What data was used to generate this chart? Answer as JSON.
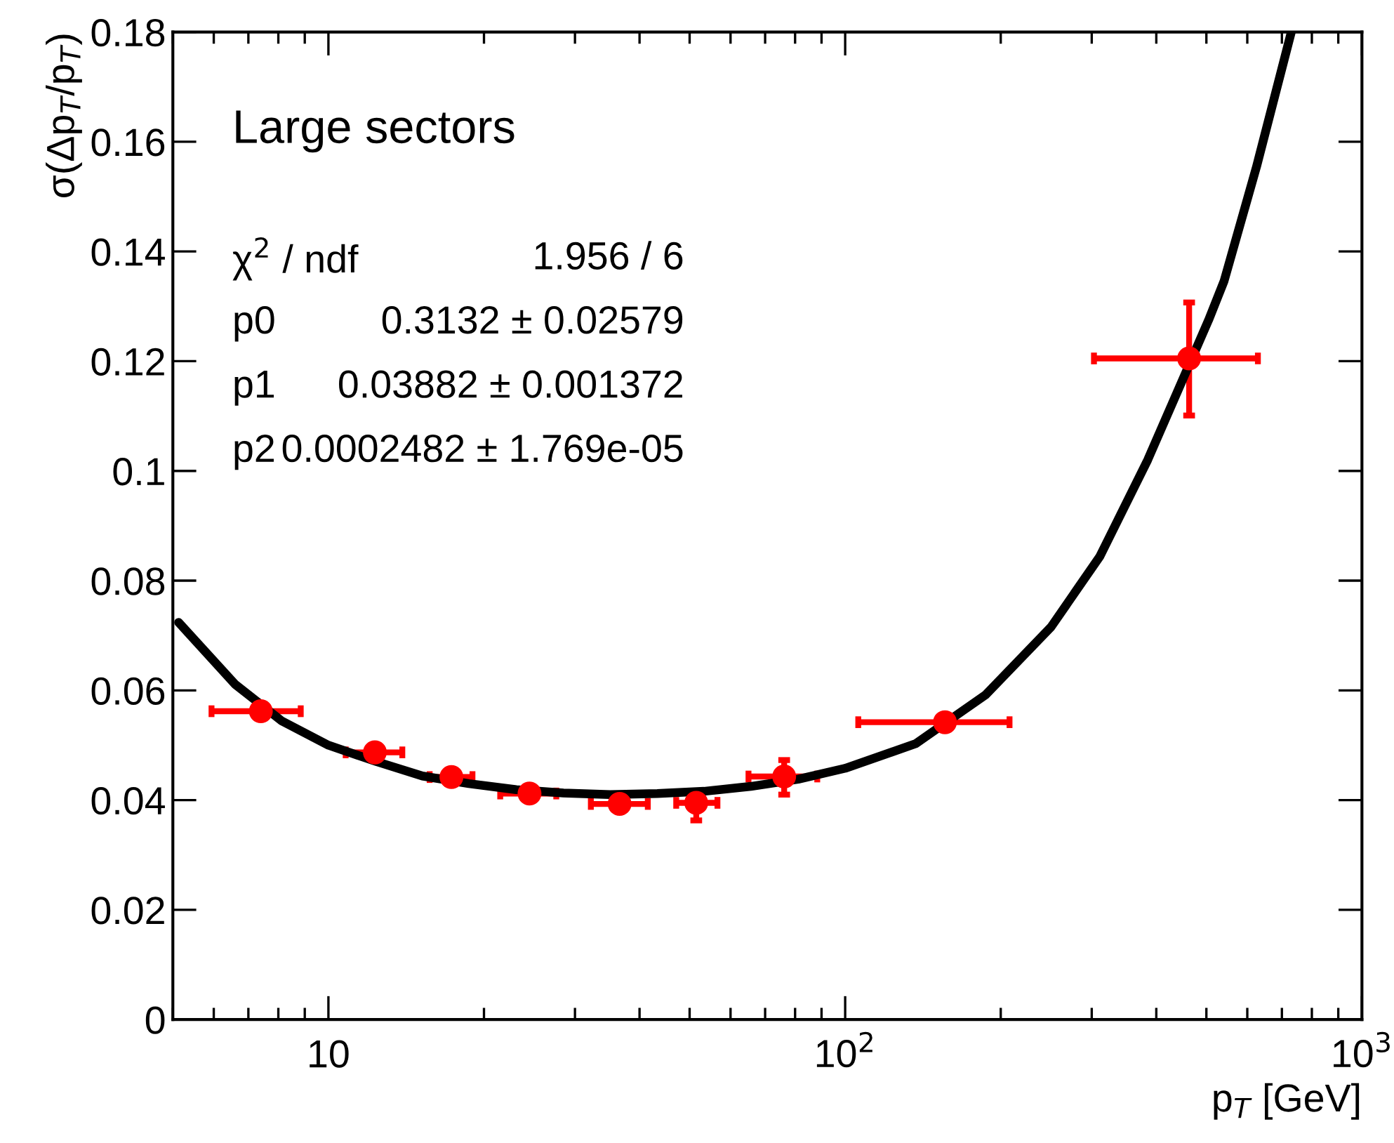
{
  "chart_data": {
    "type": "scatter",
    "xlabel": "p$_{T}$ [GeV]",
    "ylabel": "σ(Δp$_{T}$/p$_{T}$)",
    "log": "x",
    "xlim": [
      5,
      1000
    ],
    "xticks": [
      10,
      {
        "value": 100,
        "label": "10$^{2}$"
      },
      {
        "value": 1000,
        "label": "10$^{3}$"
      }
    ],
    "ylim": [
      0,
      0.18
    ],
    "yticks": [
      0,
      0.02,
      0.04,
      0.06,
      0.08,
      0.1,
      0.12,
      0.14,
      0.16,
      0.18
    ],
    "grid": false,
    "legend": false,
    "annotations": [
      "Large sectors",
      "χ$^{2}$ / ndf",
      "1.956 / 6",
      "p0",
      "0.3132 ± 0.02579",
      "p1",
      "0.03882 ± 0.001372",
      "p2",
      "0.0002482 ± 1.769e-05"
    ],
    "series": [
      {
        "type": "scatter",
        "color": "#ff0000",
        "marker": "circle",
        "x": [
          7.4,
          12.3,
          17.3,
          24.5,
          36.6,
          51.5,
          76.2,
          156,
          463
        ],
        "values": [
          0.0562,
          0.0487,
          0.0442,
          0.0412,
          0.0393,
          0.0395,
          0.0443,
          0.0542,
          0.1205
        ],
        "errors": [
          null,
          null,
          null,
          null,
          null,
          [
            0.0363,
            0.0395
          ],
          [
            0.041,
            0.0473
          ],
          null,
          [
            0.1101,
            0.1307
          ]
        ],
        "xerrors": [
          [
            5.94,
            8.84
          ],
          [
            10.8,
            13.9
          ],
          [
            15.7,
            19.0
          ],
          [
            21.5,
            27.6
          ],
          [
            32.2,
            41.5
          ],
          [
            47.1,
            56.6
          ],
          [
            65.0,
            88.3
          ],
          [
            106,
            208
          ],
          [
            303,
            629
          ]
        ]
      },
      {
        "type": "line",
        "color": "#000000",
        "line_style": "solid",
        "marker": "none",
        "x": [
          5.13,
          6.6,
          8.13,
          10,
          12.4,
          15.2,
          18.7,
          23.1,
          28.5,
          35.1,
          43.3,
          53.3,
          65.7,
          81.1,
          100,
          137,
          187,
          250,
          311,
          385,
          505,
          541,
          625,
          730
        ],
        "values": [
          0.0724,
          0.0611,
          0.0544,
          0.05,
          0.047,
          0.0444,
          0.043,
          0.0419,
          0.0413,
          0.041,
          0.0412,
          0.0416,
          0.0425,
          0.0438,
          0.0458,
          0.0503,
          0.0592,
          0.0715,
          0.0844,
          0.102,
          0.1275,
          0.1346,
          0.1554,
          0.18
        ]
      }
    ]
  }
}
